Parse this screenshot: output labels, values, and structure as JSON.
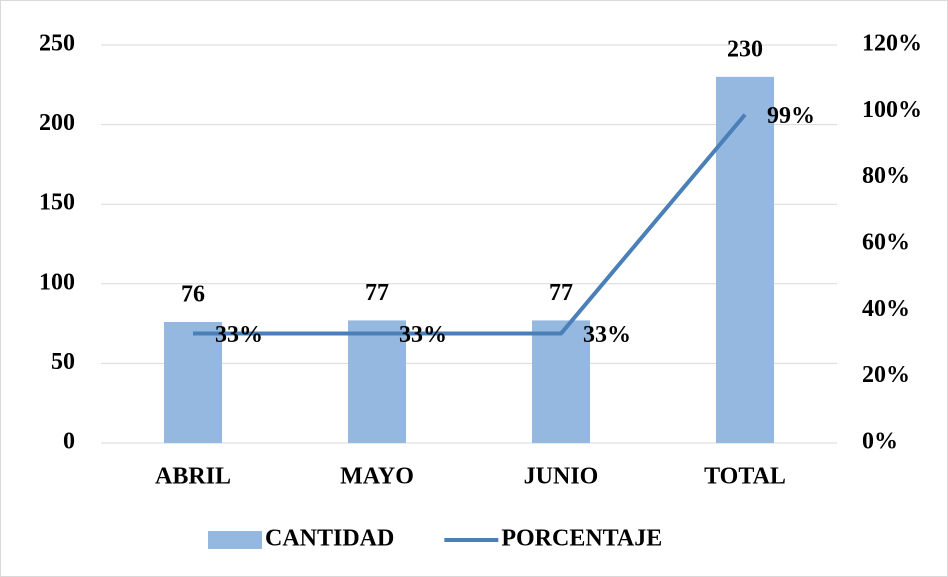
{
  "chart_data": {
    "type": "bar",
    "categories": [
      "ABRIL",
      "MAYO",
      "JUNIO",
      "TOTAL"
    ],
    "series": [
      {
        "name": "CANTIDAD",
        "color": "#95b8e0",
        "values": [
          76,
          77,
          77,
          230
        ]
      },
      {
        "name": "PORCENTAJE",
        "color": "#4a7fb8",
        "type": "line",
        "axis": "y2",
        "values": [
          33,
          33,
          33,
          99
        ],
        "value_labels": [
          "33%",
          "33%",
          "33%",
          "99%"
        ]
      }
    ],
    "ylim": [
      0,
      250
    ],
    "yticks": [
      0,
      50,
      100,
      150,
      200,
      250
    ],
    "y2lim": [
      0,
      120
    ],
    "y2ticks": [
      {
        "value": 0,
        "label": "0%"
      },
      {
        "value": 20,
        "label": "20%"
      },
      {
        "value": 40,
        "label": "40%"
      },
      {
        "value": 60,
        "label": "60%"
      },
      {
        "value": 80,
        "label": "80%"
      },
      {
        "value": 100,
        "label": "100%"
      },
      {
        "value": 120,
        "label": "120%"
      }
    ],
    "grid": true,
    "legend": "bottom"
  }
}
